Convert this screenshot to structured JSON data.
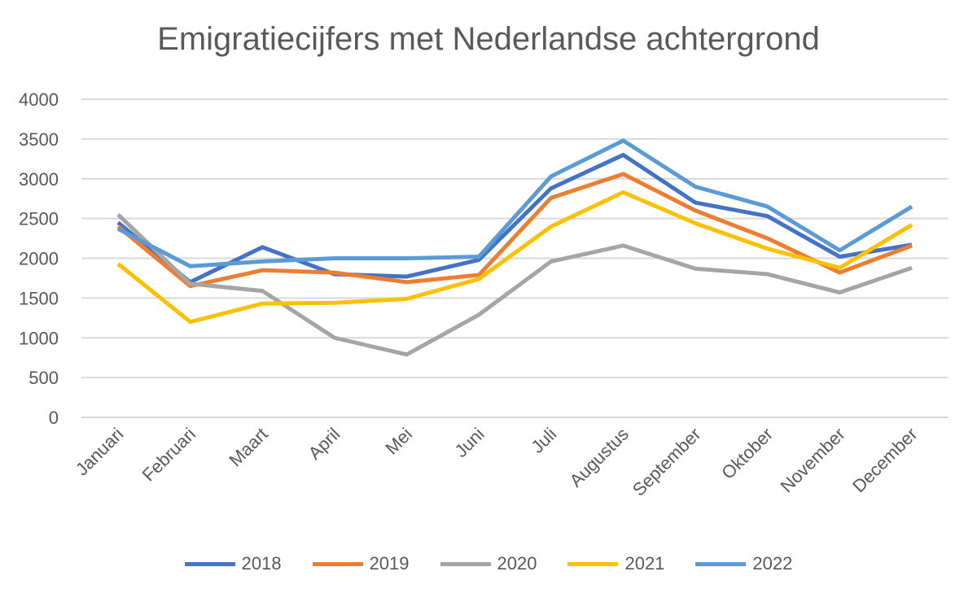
{
  "chart_data": {
    "type": "line",
    "title": "Emigratiecijfers met Nederlandse achtergrond",
    "xlabel": "",
    "ylabel": "",
    "ylim": [
      0,
      4000
    ],
    "yticks": [
      "0",
      "500",
      "1000",
      "1500",
      "2000",
      "2500",
      "3000",
      "3500",
      "4000"
    ],
    "grid": true,
    "legend": "bottom",
    "categories": [
      "Januari",
      "Februari",
      "Maart",
      "April",
      "Mei",
      "Juni",
      "Juli",
      "Augustus",
      "September",
      "Oktober",
      "November",
      "December"
    ],
    "series": [
      {
        "name": "2018",
        "color": "#4472C4",
        "values": [
          2450,
          1700,
          2140,
          1800,
          1770,
          1980,
          2880,
          3300,
          2700,
          2530,
          2020,
          2170
        ]
      },
      {
        "name": "2019",
        "color": "#ED7D31",
        "values": [
          2400,
          1650,
          1850,
          1820,
          1700,
          1790,
          2760,
          3060,
          2600,
          2250,
          1820,
          2160
        ]
      },
      {
        "name": "2020",
        "color": "#A5A5A5",
        "values": [
          2550,
          1680,
          1590,
          1000,
          790,
          1290,
          1960,
          2160,
          1870,
          1800,
          1570,
          1880
        ]
      },
      {
        "name": "2021",
        "color": "#FFC000",
        "values": [
          1930,
          1200,
          1430,
          1440,
          1490,
          1740,
          2400,
          2830,
          2440,
          2120,
          1880,
          2420
        ]
      },
      {
        "name": "2022",
        "color": "#5B9BD5",
        "values": [
          2370,
          1900,
          1960,
          2000,
          2000,
          2020,
          3030,
          3480,
          2900,
          2650,
          2100,
          2650
        ]
      }
    ]
  }
}
